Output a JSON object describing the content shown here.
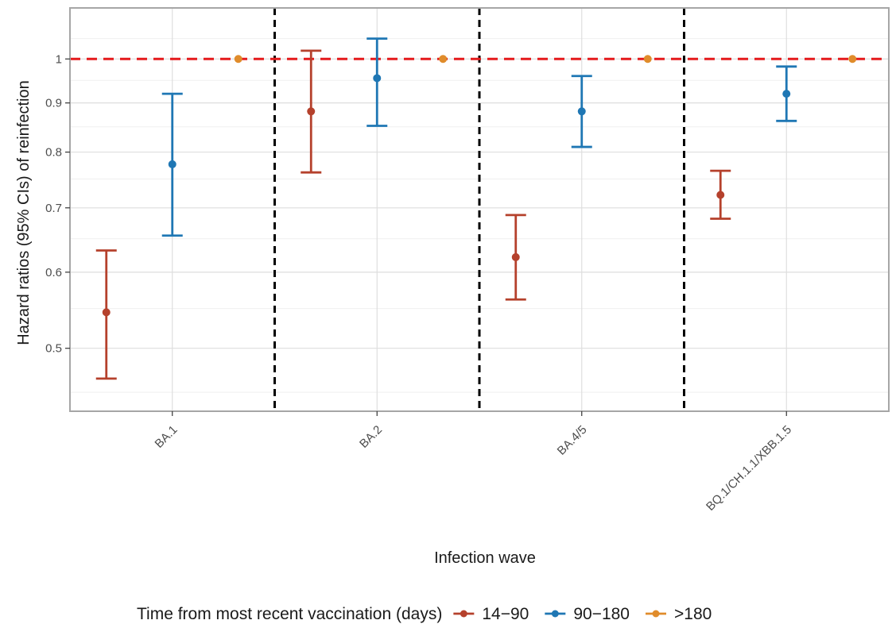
{
  "chart_data": {
    "type": "scatter",
    "xlabel": "Infection wave",
    "ylabel": "Hazard ratios (95% CIs) of reinfection",
    "categories": [
      "BA.1",
      "BA.2",
      "BA.4/5",
      "BQ.1/CH.1.1/XBB.1.5"
    ],
    "y_scale": "log",
    "ylim": [
      0.43,
      1.13
    ],
    "y_ticks": [
      0.5,
      0.6,
      0.7,
      0.8,
      0.9,
      1
    ],
    "y_tick_labels": [
      "0.5",
      "0.6",
      "0.7",
      "0.8",
      "0.9",
      "1"
    ],
    "y_minor_ticks": [
      0.45,
      0.55,
      0.65,
      0.75,
      0.85,
      0.95,
      1.05
    ],
    "reference_line": {
      "y": 1,
      "color": "#e41a1c",
      "style": "dashed"
    },
    "wave_separators": "dashed black vertical lines between waves",
    "grid": true,
    "legend": {
      "title": "Time from most recent vaccination (days)",
      "position": "bottom"
    },
    "series": [
      {
        "name": "14−90",
        "color": "#b5412c",
        "points": [
          {
            "category": "BA.1",
            "hr": 0.545,
            "lower": 0.465,
            "upper": 0.632
          },
          {
            "category": "BA.2",
            "hr": 0.882,
            "lower": 0.762,
            "upper": 1.02
          },
          {
            "category": "BA.4/5",
            "hr": 0.622,
            "lower": 0.562,
            "upper": 0.688
          },
          {
            "category": "BQ.1/CH.1.1/XBB.1.5",
            "hr": 0.722,
            "lower": 0.682,
            "upper": 0.765
          }
        ]
      },
      {
        "name": "90−180",
        "color": "#1f77b4",
        "points": [
          {
            "category": "BA.1",
            "hr": 0.777,
            "lower": 0.655,
            "upper": 0.92
          },
          {
            "category": "BA.2",
            "hr": 0.955,
            "lower": 0.852,
            "upper": 1.05
          },
          {
            "category": "BA.4/5",
            "hr": 0.882,
            "lower": 0.81,
            "upper": 0.96
          },
          {
            "category": "BQ.1/CH.1.1/XBB.1.5",
            "hr": 0.92,
            "lower": 0.862,
            "upper": 0.982
          }
        ]
      },
      {
        "name": ">180",
        "color": "#e08c2b",
        "points": [
          {
            "category": "BA.1",
            "hr": 1.0
          },
          {
            "category": "BA.2",
            "hr": 1.0
          },
          {
            "category": "BA.4/5",
            "hr": 1.0
          },
          {
            "category": "BQ.1/CH.1.1/XBB.1.5",
            "hr": 1.0
          }
        ]
      }
    ]
  }
}
